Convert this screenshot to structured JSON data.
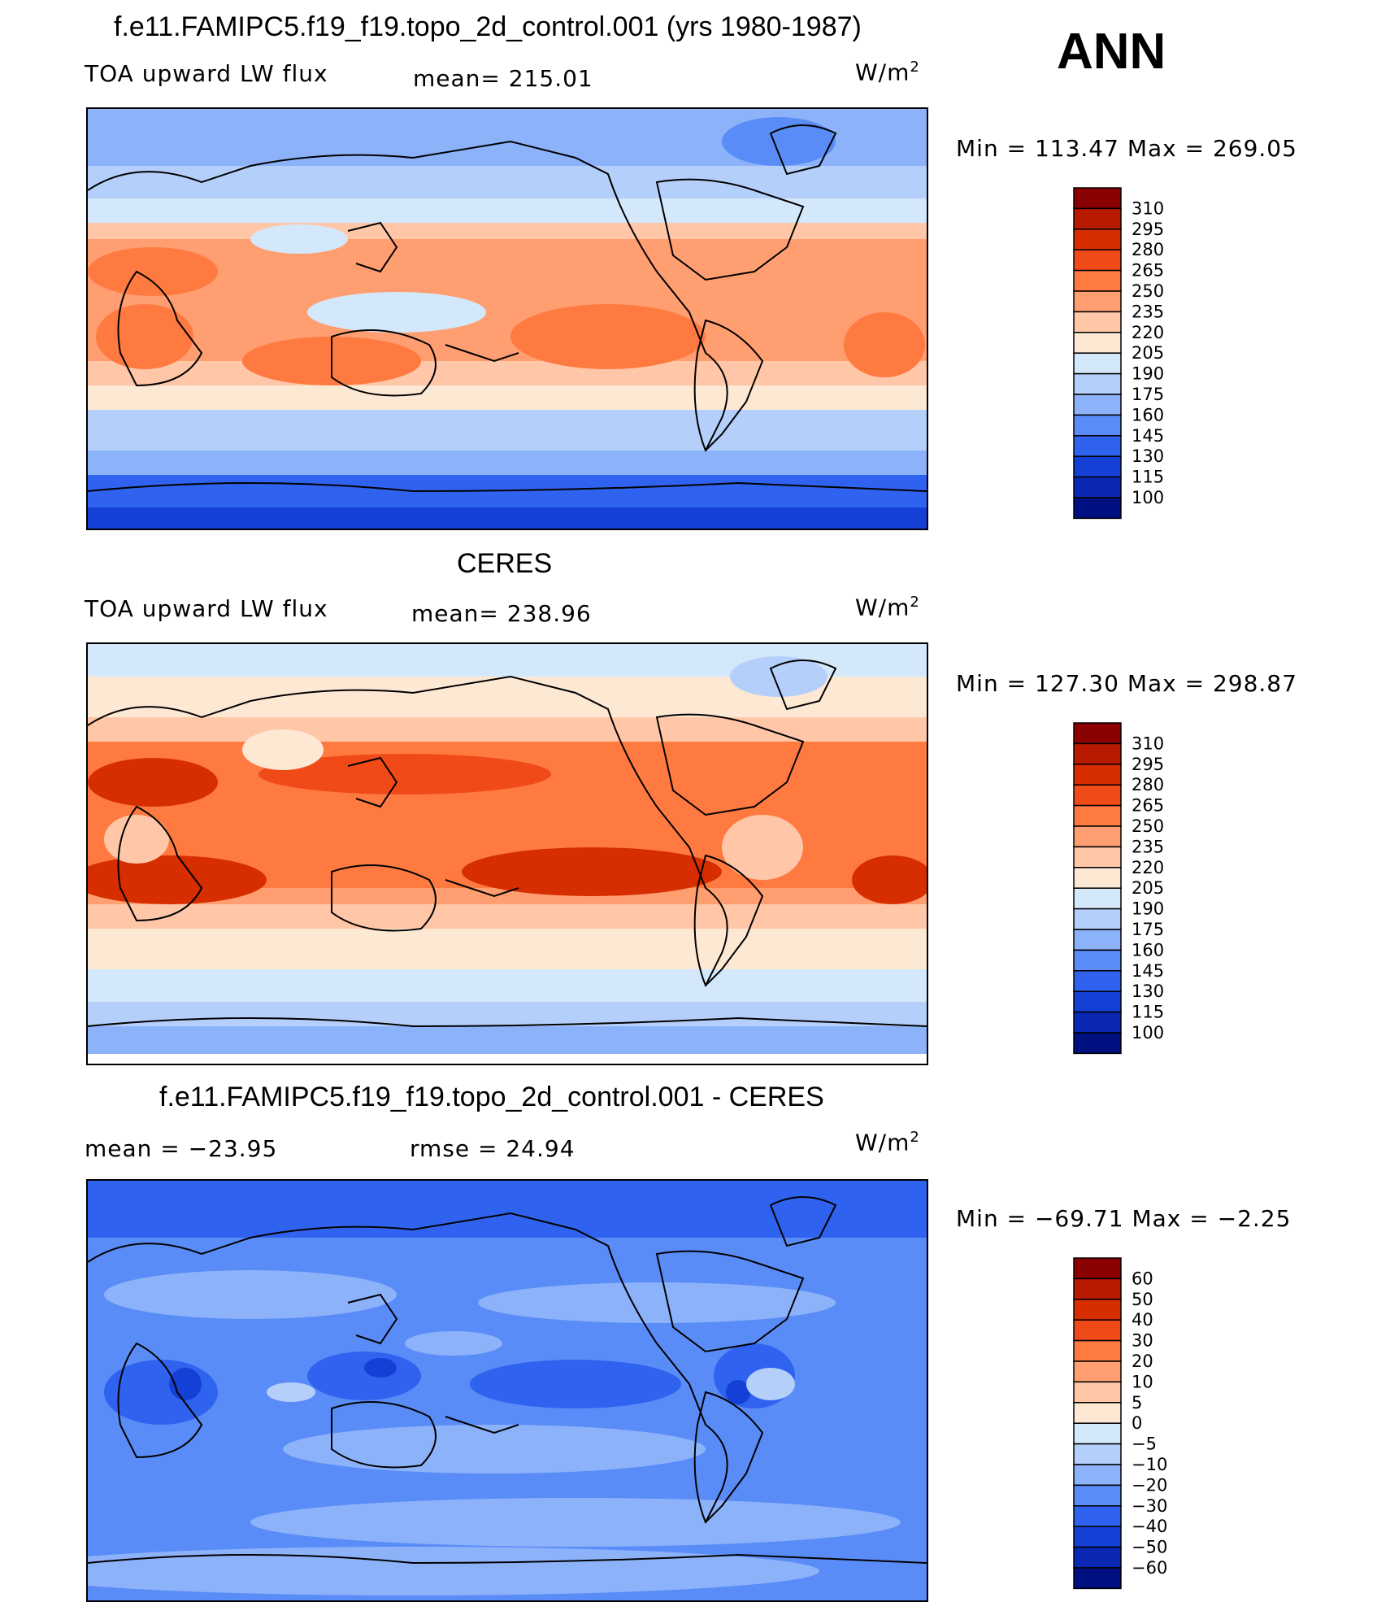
{
  "season": "ANN",
  "units": "W/m",
  "units_sup": "2",
  "panels": [
    {
      "title": "f.e11.FAMIPC5.f19_f19.topo_2d_control.001 (yrs 1980-1987)",
      "left_label": "TOA upward LW flux",
      "mid_label": "mean= 215.01",
      "minmax": "Min  =  113.47  Max  =  269.05",
      "colorbar": {
        "labels": [
          "310",
          "295",
          "280",
          "265",
          "250",
          "235",
          "220",
          "205",
          "190",
          "175",
          "160",
          "145",
          "130",
          "115",
          "100"
        ],
        "colors": [
          "#8b0000",
          "#b81a00",
          "#d62e00",
          "#f04a18",
          "#ff7a40",
          "#ff9e70",
          "#ffc7a8",
          "#fde8d4",
          "#d4e8fb",
          "#b4cffa",
          "#8cb2fa",
          "#5a8cf8",
          "#2f62ee",
          "#1540d6",
          "#0a28b4",
          "#001080"
        ]
      }
    },
    {
      "title": "CERES",
      "left_label": "TOA upward LW flux",
      "mid_label": "mean= 238.96",
      "minmax": "Min  =  127.30  Max  =  298.87",
      "colorbar": {
        "labels": [
          "310",
          "295",
          "280",
          "265",
          "250",
          "235",
          "220",
          "205",
          "190",
          "175",
          "160",
          "145",
          "130",
          "115",
          "100"
        ],
        "colors": [
          "#8b0000",
          "#b81a00",
          "#d62e00",
          "#f04a18",
          "#ff7a40",
          "#ff9e70",
          "#ffc7a8",
          "#fde8d4",
          "#d4e8fb",
          "#b4cffa",
          "#8cb2fa",
          "#5a8cf8",
          "#2f62ee",
          "#1540d6",
          "#0a28b4",
          "#001080"
        ]
      }
    },
    {
      "title": "f.e11.FAMIPC5.f19_f19.topo_2d_control.001 - CERES",
      "left_label": "mean  =  −23.95",
      "mid_label": "rmse  =    24.94",
      "minmax": "Min  =  −69.71  Max  =    −2.25",
      "colorbar": {
        "labels": [
          "60",
          "50",
          "40",
          "30",
          "20",
          "10",
          "5",
          "0",
          "−5",
          "−10",
          "−20",
          "−30",
          "−40",
          "−50",
          "−60"
        ],
        "colors": [
          "#8b0000",
          "#b81a00",
          "#d62e00",
          "#f04a18",
          "#ff7a40",
          "#ff9e70",
          "#ffc7a8",
          "#fde8d4",
          "#d4e8fb",
          "#b4cffa",
          "#8cb2fa",
          "#5a8cf8",
          "#2f62ee",
          "#1540d6",
          "#0a28b4",
          "#001080"
        ]
      }
    }
  ]
}
